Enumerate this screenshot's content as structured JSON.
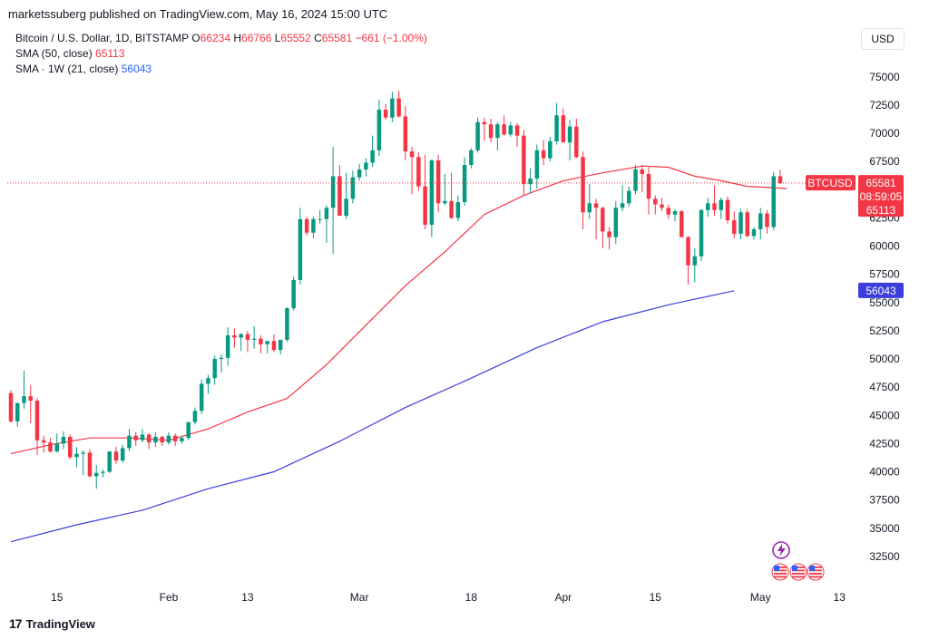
{
  "header": {
    "published": "marketssuberg published on TradingView.com, May 16, 2024 15:00 UTC"
  },
  "legend": {
    "symbol": "Bitcoin / U.S. Dollar, 1D, BITSTAMP",
    "ohlc": [
      {
        "k": "O",
        "v": "66234"
      },
      {
        "k": "H",
        "v": "66766"
      },
      {
        "k": "L",
        "v": "65552"
      },
      {
        "k": "C",
        "v": "65581"
      }
    ],
    "change": "−661 (−1.00%)",
    "sma50_label": "SMA (50, close)",
    "sma50_value": "65113",
    "sma1w_label": "SMA · 1W (21, close)",
    "sma1w_value": "56043"
  },
  "currency_button": "USD",
  "footer": {
    "brand": "TradingView",
    "mark": "17"
  },
  "price_tags": {
    "symbol": "BTCUSD",
    "last": "65581",
    "countdown": "08:59:05",
    "sma50": "65113",
    "sma1w": "56043"
  },
  "colors": {
    "up": "#089981",
    "down": "#f23645",
    "sma50": "#f23645",
    "sma1w": "#3d3ddc",
    "text": "#131722"
  },
  "chart_data": {
    "type": "candlestick",
    "y_axis": {
      "range": [
        30000,
        77000
      ],
      "ticks": [
        32500,
        35000,
        37500,
        40000,
        42500,
        45000,
        47500,
        50000,
        52500,
        55000,
        57500,
        60000,
        62500,
        65000,
        67500,
        70000,
        72500,
        75000
      ]
    },
    "x_axis_labels": [
      {
        "label": "15",
        "date": "2024-01-15"
      },
      {
        "label": "Feb",
        "date": "2024-02-01"
      },
      {
        "label": "13",
        "date": "2024-02-13"
      },
      {
        "label": "Mar",
        "date": "2024-03-01"
      },
      {
        "label": "18",
        "date": "2024-03-18"
      },
      {
        "label": "Apr",
        "date": "2024-04-01"
      },
      {
        "label": "15",
        "date": "2024-04-15"
      },
      {
        "label": "May",
        "date": "2024-05-01"
      },
      {
        "label": "13",
        "date": "2024-05-13"
      }
    ],
    "start_date": "2024-01-08",
    "candles": [
      [
        46970,
        47220,
        44350,
        44470
      ],
      [
        44470,
        46100,
        44000,
        46100
      ],
      [
        46100,
        48970,
        45600,
        46700
      ],
      [
        46700,
        47700,
        44300,
        46300
      ],
      [
        46300,
        46500,
        41500,
        42800
      ],
      [
        42800,
        43200,
        41700,
        42600
      ],
      [
        42600,
        43000,
        41700,
        41800
      ],
      [
        41800,
        43400,
        41700,
        42500
      ],
      [
        42500,
        43600,
        42000,
        43100
      ],
      [
        43100,
        43300,
        41100,
        41300
      ],
      [
        41300,
        42200,
        40400,
        41600
      ],
      [
        41600,
        41900,
        39700,
        41700
      ],
      [
        41700,
        42000,
        39500,
        39600
      ],
      [
        39600,
        40600,
        38500,
        39900
      ],
      [
        39900,
        40200,
        39500,
        40000
      ],
      [
        40000,
        41800,
        39900,
        41800
      ],
      [
        41800,
        42200,
        40700,
        41000
      ],
      [
        41000,
        42400,
        40800,
        42100
      ],
      [
        42100,
        43800,
        41800,
        43200
      ],
      [
        43200,
        43500,
        42300,
        42800
      ],
      [
        42800,
        43800,
        42600,
        43300
      ],
      [
        43300,
        43400,
        42000,
        42600
      ],
      [
        42600,
        43500,
        42200,
        43100
      ],
      [
        43100,
        43200,
        42300,
        42600
      ],
      [
        42600,
        43500,
        42400,
        43200
      ],
      [
        43200,
        43400,
        42300,
        42700
      ],
      [
        42700,
        43200,
        42500,
        43000
      ],
      [
        43000,
        44400,
        42800,
        44400
      ],
      [
        44400,
        45700,
        44200,
        45400
      ],
      [
        45400,
        48200,
        45100,
        47800
      ],
      [
        47800,
        48600,
        46900,
        48300
      ],
      [
        48300,
        50300,
        47700,
        50000
      ],
      [
        50000,
        50400,
        48800,
        50100
      ],
      [
        50100,
        52800,
        49400,
        52100
      ],
      [
        52100,
        52700,
        51000,
        51900
      ],
      [
        51900,
        52300,
        50700,
        52200
      ],
      [
        52200,
        52500,
        50600,
        51700
      ],
      [
        51700,
        52900,
        50900,
        51800
      ],
      [
        51800,
        52100,
        50500,
        51300
      ],
      [
        51300,
        51600,
        50500,
        51600
      ],
      [
        51600,
        52200,
        50600,
        50800
      ],
      [
        50800,
        51500,
        50400,
        51700
      ],
      [
        51700,
        54600,
        51500,
        54500
      ],
      [
        54500,
        57300,
        54300,
        57000
      ],
      [
        57000,
        63400,
        56600,
        62400
      ],
      [
        62400,
        62600,
        60900,
        61200
      ],
      [
        61200,
        62600,
        60700,
        62400
      ],
      [
        62400,
        63200,
        62000,
        62400
      ],
      [
        62400,
        63600,
        60300,
        63400
      ],
      [
        63400,
        68800,
        59300,
        66200
      ],
      [
        66200,
        67200,
        62700,
        62700
      ],
      [
        62700,
        66500,
        62400,
        64200
      ],
      [
        64200,
        66700,
        63800,
        66100
      ],
      [
        66100,
        67300,
        65800,
        66800
      ],
      [
        66800,
        67800,
        66200,
        67400
      ],
      [
        67400,
        69800,
        67000,
        68500
      ],
      [
        68500,
        73000,
        68000,
        72100
      ],
      [
        72100,
        72600,
        71200,
        71400
      ],
      [
        71400,
        73700,
        71000,
        73100
      ],
      [
        73100,
        73800,
        71400,
        71500
      ],
      [
        71500,
        72400,
        67600,
        68400
      ],
      [
        68400,
        68800,
        64600,
        67900
      ],
      [
        67900,
        68300,
        64900,
        65300
      ],
      [
        65300,
        68100,
        61500,
        61900
      ],
      [
        61900,
        67700,
        60800,
        67600
      ],
      [
        67600,
        68100,
        63000,
        63800
      ],
      [
        63800,
        66400,
        63600,
        64000
      ],
      [
        64000,
        66500,
        62400,
        62500
      ],
      [
        62500,
        64500,
        62200,
        63900
      ],
      [
        63900,
        67900,
        63600,
        67200
      ],
      [
        67200,
        68700,
        66900,
        68500
      ],
      [
        68500,
        71400,
        68300,
        71000
      ],
      [
        71000,
        71400,
        69300,
        70800
      ],
      [
        70800,
        71300,
        69200,
        69600
      ],
      [
        69600,
        71000,
        68500,
        70800
      ],
      [
        70800,
        71600,
        69800,
        69900
      ],
      [
        69900,
        71000,
        69700,
        70700
      ],
      [
        70700,
        70900,
        68800,
        69800
      ],
      [
        69800,
        70300,
        64500,
        65500
      ],
      [
        65500,
        66900,
        64700,
        66000
      ],
      [
        66000,
        69000,
        65100,
        68500
      ],
      [
        68500,
        69400,
        67200,
        67800
      ],
      [
        67800,
        69700,
        67500,
        69300
      ],
      [
        69300,
        72700,
        69000,
        71600
      ],
      [
        71600,
        72200,
        69200,
        69200
      ],
      [
        69200,
        71200,
        67600,
        70600
      ],
      [
        70600,
        71300,
        67800,
        67900
      ],
      [
        67900,
        68400,
        61500,
        63000
      ],
      [
        63000,
        65500,
        62400,
        63800
      ],
      [
        63800,
        64200,
        60600,
        63400
      ],
      [
        63400,
        63500,
        59800,
        61300
      ],
      [
        61300,
        61700,
        59700,
        60800
      ],
      [
        60800,
        64000,
        60200,
        63400
      ],
      [
        63400,
        65400,
        63100,
        63800
      ],
      [
        63800,
        65300,
        63500,
        64900
      ],
      [
        64900,
        67200,
        64600,
        66800
      ],
      [
        66800,
        67200,
        64800,
        66400
      ],
      [
        66400,
        67000,
        62800,
        64200
      ],
      [
        64200,
        64500,
        62800,
        63700
      ],
      [
        63700,
        64300,
        63100,
        63400
      ],
      [
        63400,
        63700,
        62400,
        62800
      ],
      [
        62800,
        63300,
        62200,
        63100
      ],
      [
        63100,
        63200,
        60800,
        60800
      ],
      [
        60800,
        60900,
        56600,
        58300
      ],
      [
        58300,
        59800,
        56800,
        59100
      ],
      [
        59100,
        63300,
        58700,
        63200
      ],
      [
        63200,
        64300,
        62600,
        63800
      ],
      [
        63800,
        65400,
        62700,
        63200
      ],
      [
        63200,
        64300,
        62400,
        64100
      ],
      [
        64100,
        64400,
        62000,
        62300
      ],
      [
        62300,
        63100,
        60700,
        61100
      ],
      [
        61100,
        63300,
        60600,
        63000
      ],
      [
        63000,
        63300,
        60800,
        60900
      ],
      [
        60900,
        61700,
        60600,
        61500
      ],
      [
        61500,
        63400,
        60600,
        62900
      ],
      [
        62900,
        63200,
        61100,
        61700
      ],
      [
        61700,
        66600,
        61400,
        66200
      ],
      [
        66200,
        66800,
        65500,
        65600
      ]
    ],
    "sma50": [
      [
        0,
        41600
      ],
      [
        6,
        42400
      ],
      [
        12,
        43000
      ],
      [
        18,
        43000
      ],
      [
        24,
        42800
      ],
      [
        30,
        43800
      ],
      [
        36,
        45300
      ],
      [
        42,
        46500
      ],
      [
        48,
        49500
      ],
      [
        54,
        53000
      ],
      [
        60,
        56500
      ],
      [
        66,
        59500
      ],
      [
        72,
        62800
      ],
      [
        78,
        64500
      ],
      [
        84,
        65800
      ],
      [
        90,
        66500
      ],
      [
        96,
        67100
      ],
      [
        100,
        67000
      ],
      [
        104,
        66200
      ],
      [
        108,
        65800
      ],
      [
        112,
        65300
      ],
      [
        118,
        65113
      ]
    ],
    "sma1w": [
      [
        0,
        33800
      ],
      [
        10,
        35300
      ],
      [
        20,
        36600
      ],
      [
        30,
        38500
      ],
      [
        40,
        40000
      ],
      [
        50,
        42700
      ],
      [
        60,
        45700
      ],
      [
        70,
        48300
      ],
      [
        80,
        51000
      ],
      [
        90,
        53300
      ],
      [
        100,
        54800
      ],
      [
        110,
        56043
      ]
    ]
  }
}
